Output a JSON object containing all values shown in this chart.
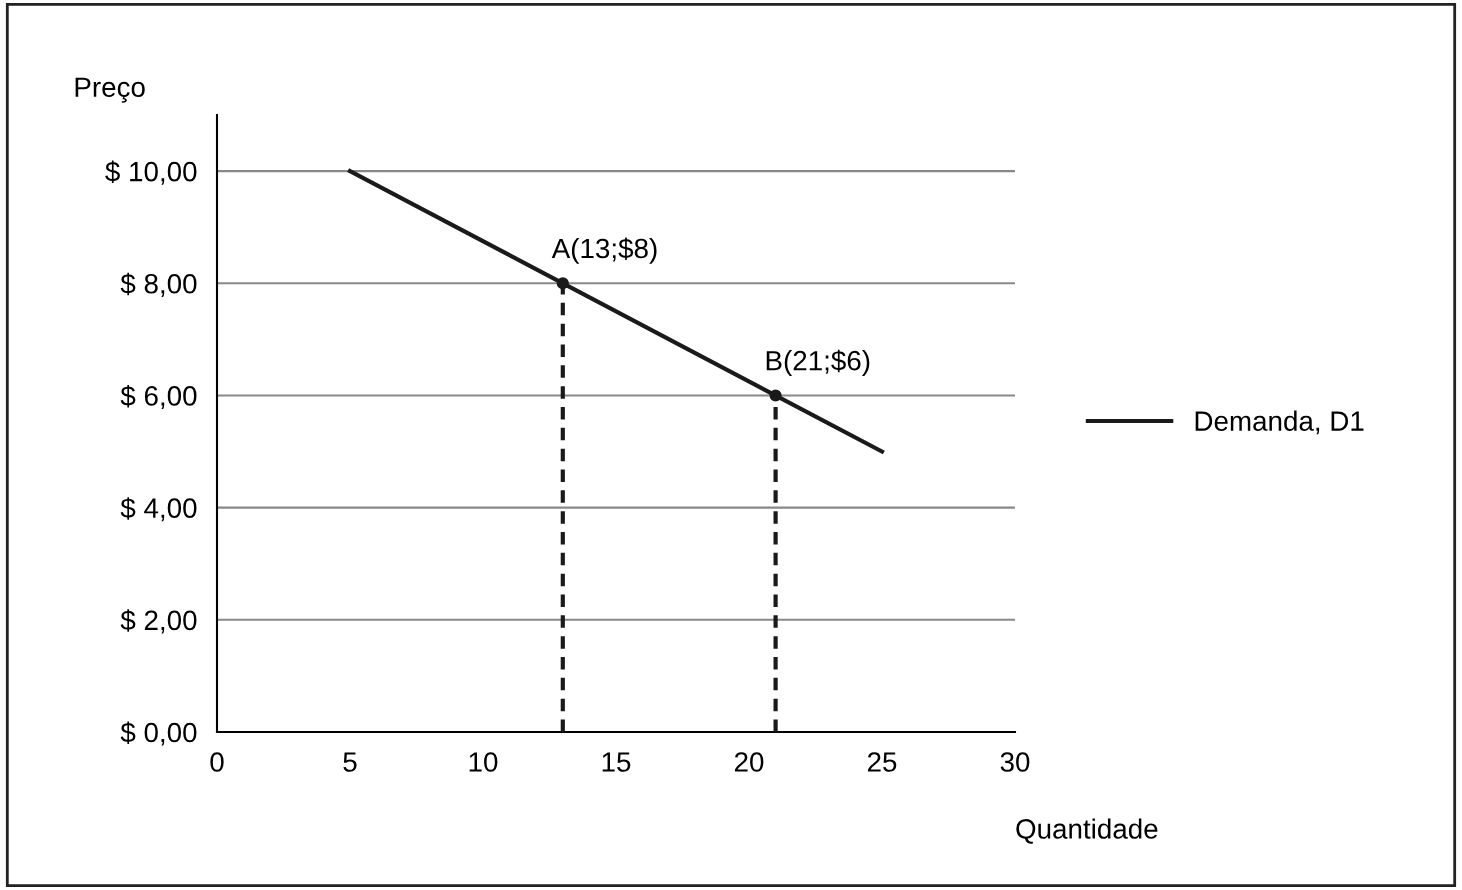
{
  "chart_data": {
    "type": "line",
    "xlabel": "Quantidade",
    "ylabel": "Preço",
    "xlim": [
      0,
      30
    ],
    "xticks": [
      0,
      5,
      10,
      15,
      20,
      25,
      30
    ],
    "ylim": [
      0,
      11
    ],
    "yticks": [
      {
        "value": 0,
        "label": "$ 0,00"
      },
      {
        "value": 2,
        "label": "$ 2,00"
      },
      {
        "value": 4,
        "label": "$ 4,00"
      },
      {
        "value": 6,
        "label": "$ 6,00"
      },
      {
        "value": 8,
        "label": "$ 8,00"
      },
      {
        "value": 10,
        "label": "$ 10,00"
      }
    ],
    "grid": "y",
    "legend": "right",
    "series": [
      {
        "name": "Demanda, D1",
        "color": "#1a1a1a",
        "x": [
          5,
          25
        ],
        "values": [
          10,
          5
        ]
      },
      {
        "color": "#1a1a1a",
        "line_style": "dashed",
        "x": [
          13,
          13
        ],
        "values": [
          0,
          8
        ]
      },
      {
        "color": "#1a1a1a",
        "line_style": "dashed",
        "x": [
          21,
          21
        ],
        "values": [
          0,
          6
        ]
      },
      {
        "type": "scatter",
        "color": "#1a1a1a",
        "marker": "circle",
        "x": [
          13,
          21
        ],
        "values": [
          8,
          6
        ]
      }
    ],
    "annotations": [
      {
        "text": "A(13;$8)",
        "x": 13,
        "y": 8
      },
      {
        "text": "B(21;$6)",
        "x": 21,
        "y": 6
      }
    ]
  }
}
